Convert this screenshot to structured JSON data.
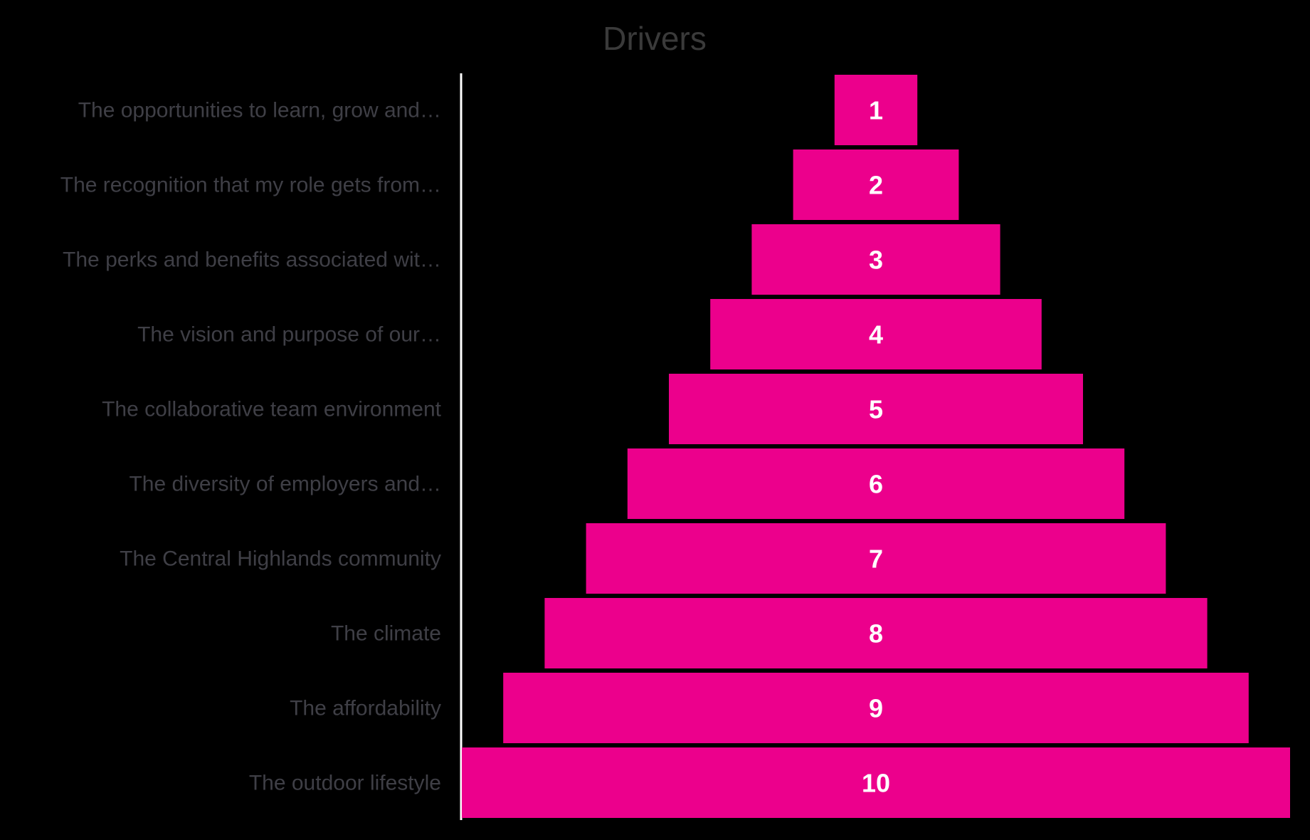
{
  "chart_data": {
    "type": "bar",
    "orientation": "horizontal",
    "layout": "centered-pyramid",
    "title": "Drivers",
    "xlabel": "",
    "ylabel": "",
    "grid": false,
    "legend": "none",
    "categories": [
      "The opportunities to learn, grow and…",
      "The recognition that my role gets from…",
      "The perks and benefits associated wit…",
      "The vision and purpose of our…",
      "The collaborative team environment",
      "The diversity of employers and…",
      "The Central Highlands community",
      "The climate",
      "The affordability",
      "The outdoor lifestyle"
    ],
    "values": [
      1,
      2,
      3,
      4,
      5,
      6,
      7,
      8,
      9,
      10
    ],
    "data_labels": [
      "1",
      "2",
      "3",
      "4",
      "5",
      "6",
      "7",
      "8",
      "9",
      "10"
    ],
    "xlim": [
      0,
      10
    ],
    "colors": {
      "bar": "#EC008C",
      "background": "#000000",
      "axis_line": "#ffffff",
      "title": "#3a3a3a",
      "category_text": "#3f3f46",
      "data_label": "#ffffff"
    }
  }
}
